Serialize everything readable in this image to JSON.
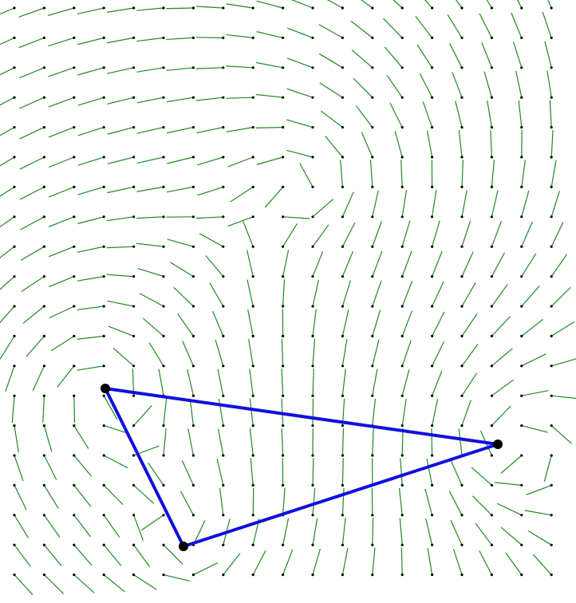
{
  "diagram": {
    "colors": {
      "background": "#ffffff",
      "field_line": "#1f8a1f",
      "field_dot": "#000000",
      "triangle_edge": "#1010dd",
      "vertex_fill": "#000000"
    },
    "vertices": [
      {
        "name": "vertex-a"
      },
      {
        "name": "vertex-b"
      },
      {
        "name": "vertex-c"
      }
    ],
    "edges": [
      {
        "name": "edge-ab",
        "from": 0,
        "to": 1
      },
      {
        "name": "edge-bc",
        "from": 1,
        "to": 2
      },
      {
        "name": "edge-ca",
        "from": 2,
        "to": 0
      }
    ]
  }
}
